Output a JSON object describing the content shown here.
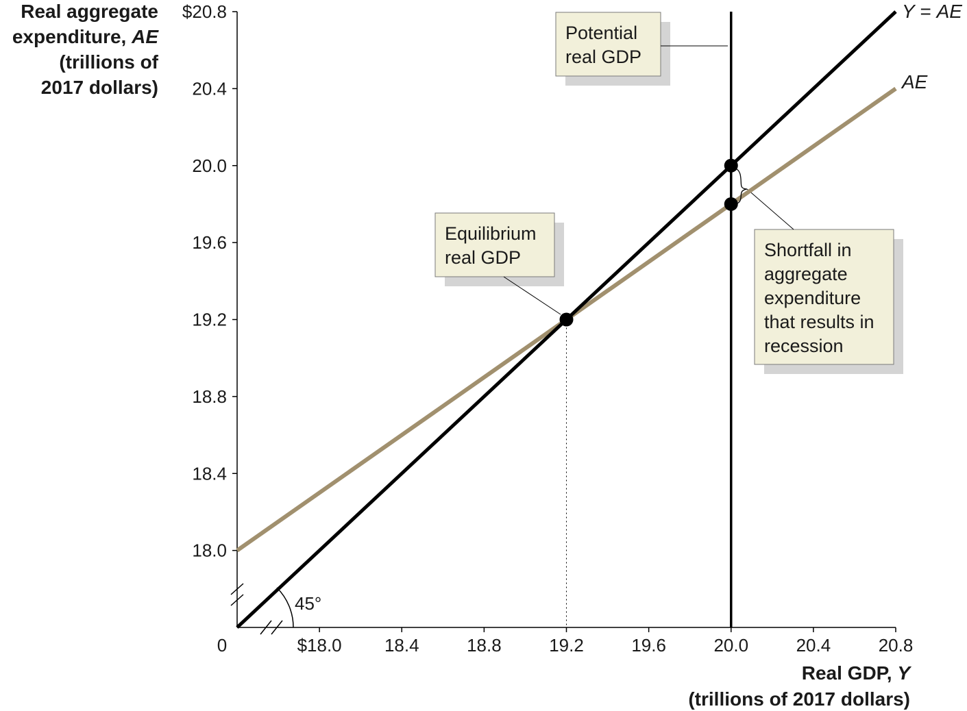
{
  "chart_data": {
    "type": "line",
    "xlabel": "Real GDP, ",
    "xlabel_var": "Y",
    "xlabel_units": "(trillions of 2017 dollars)",
    "ylabel": "Real aggregate",
    "ylabel_line2": "expenditure, ",
    "ylabel_var": "AE",
    "ylabel_line3": "(trillions of",
    "ylabel_line4": "2017 dollars)",
    "origin_label": "0",
    "xlim": [
      17.6,
      20.8
    ],
    "ylim": [
      17.6,
      20.8
    ],
    "x_ticks": [
      18.0,
      18.4,
      18.8,
      19.2,
      19.6,
      20.0,
      20.4,
      20.8
    ],
    "x_tick_labels": [
      "$18.0",
      "18.4",
      "18.8",
      "19.2",
      "19.6",
      "20.0",
      "20.4",
      "20.8"
    ],
    "y_ticks": [
      18.0,
      18.4,
      18.8,
      19.2,
      19.6,
      20.0,
      20.4,
      20.8
    ],
    "y_tick_labels": [
      "18.0",
      "18.4",
      "18.8",
      "19.2",
      "19.6",
      "20.0",
      "20.4",
      "$20.8"
    ],
    "axis_breaks": true,
    "grid": false,
    "series": [
      {
        "name": "Y = AE",
        "name_parts": [
          "Y",
          " = ",
          "AE"
        ],
        "color": "#000000",
        "x": [
          17.6,
          20.8
        ],
        "y": [
          17.6,
          20.8
        ]
      },
      {
        "name": "AE",
        "color": "#a1906e",
        "x": [
          17.6,
          20.8
        ],
        "y": [
          18.0,
          20.4
        ]
      }
    ],
    "vertical_line": {
      "x": 20.0,
      "color": "#000000"
    },
    "points": [
      {
        "x": 19.2,
        "y": 19.2
      },
      {
        "x": 20.0,
        "y": 20.0
      },
      {
        "x": 20.0,
        "y": 19.8
      }
    ],
    "angle_label": "45°",
    "annotations": {
      "potential": {
        "lines": [
          "Potential",
          "real GDP"
        ]
      },
      "equilibrium": {
        "lines": [
          "Equilibrium",
          "real GDP"
        ]
      },
      "shortfall": {
        "lines": [
          "Shortfall in",
          "aggregate",
          "expenditure",
          "that results in",
          "recession"
        ]
      }
    },
    "colors": {
      "box_fill": "#f2f0da",
      "box_shadow": "#d4d4d4",
      "box_border": "#7a7a7a"
    }
  }
}
